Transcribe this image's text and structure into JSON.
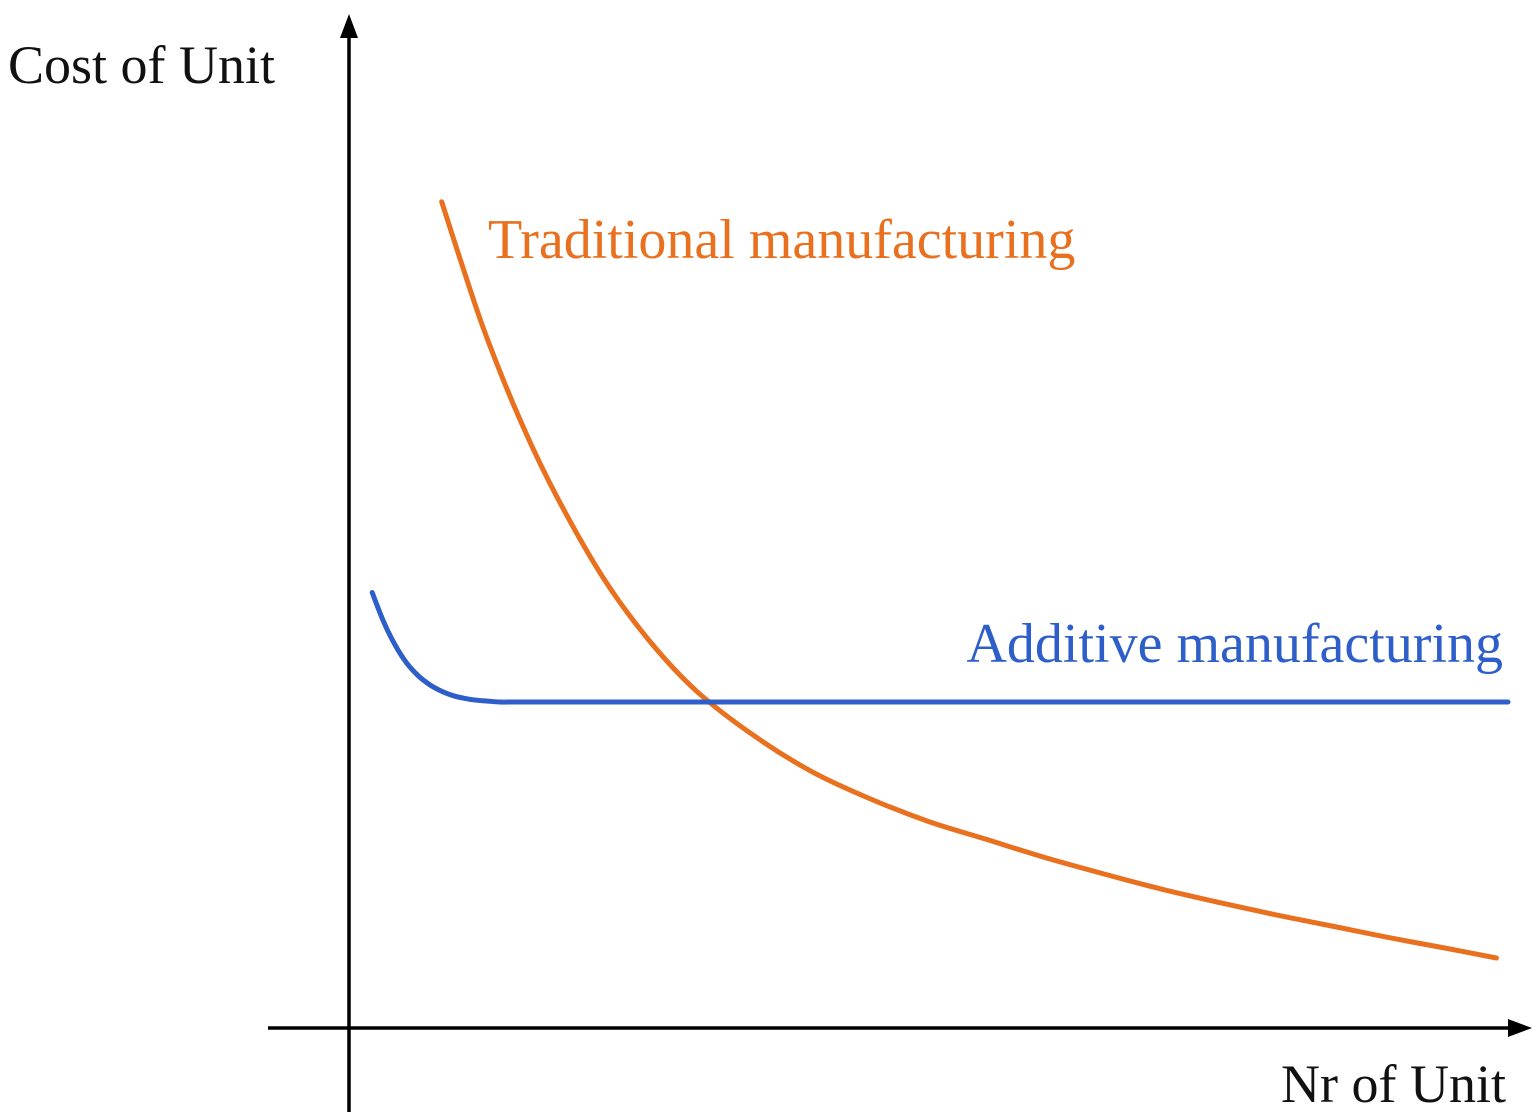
{
  "chart_data": {
    "type": "line",
    "title": "",
    "xlabel": "Nr of Unit",
    "ylabel": "Cost of Unit",
    "grid": false,
    "legend": "none",
    "xlim": [
      0,
      100
    ],
    "ylim": [
      0,
      100
    ],
    "series": [
      {
        "name": "Traditional manufacturing",
        "color": "#E8701E",
        "x": [
          8,
          10,
          12,
          15,
          18,
          22,
          26,
          30,
          35,
          40,
          45,
          50,
          55,
          60,
          65,
          70,
          75,
          80,
          85,
          90,
          95,
          99
        ],
        "y": [
          92,
          84,
          76.5,
          67,
          59,
          50,
          43,
          37.5,
          32.5,
          28.5,
          25.5,
          23,
          21,
          19,
          17.2,
          15.5,
          14,
          12.6,
          11.3,
          10,
          8.8,
          7.8
        ]
      },
      {
        "name": "Additive manufacturing",
        "color": "#2E5EC9",
        "x": [
          2,
          3,
          4,
          5,
          6,
          7,
          8,
          9,
          10,
          11,
          12,
          13,
          14,
          15,
          20,
          30,
          40,
          50,
          60,
          70,
          80,
          90,
          100
        ],
        "y": [
          48.5,
          45.2,
          42.6,
          40.6,
          39.2,
          38.2,
          37.5,
          37.0,
          36.7,
          36.5,
          36.4,
          36.3,
          36.3,
          36.3,
          36.3,
          36.3,
          36.3,
          36.3,
          36.3,
          36.3,
          36.3,
          36.3,
          36.3
        ]
      }
    ]
  }
}
